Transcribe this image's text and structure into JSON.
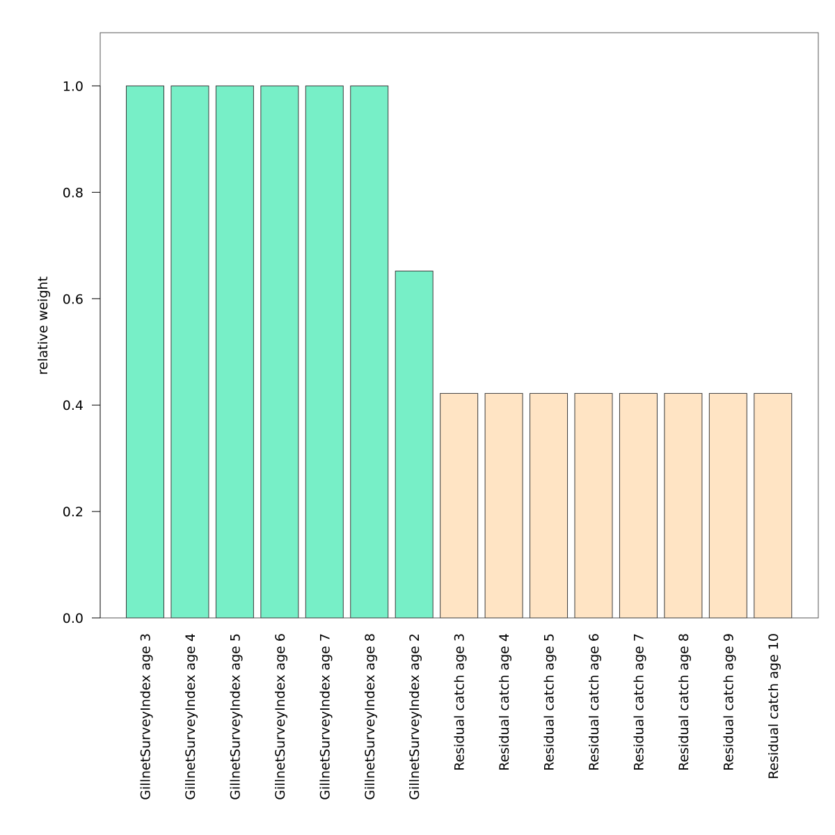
{
  "chart_data": {
    "type": "bar",
    "title": "",
    "xlabel": "",
    "ylabel": "relative weight",
    "ylim": [
      0,
      1.1
    ],
    "yticks": [
      0.0,
      0.2,
      0.4,
      0.6,
      0.8,
      1.0
    ],
    "ytick_labels": [
      "0.0",
      "0.2",
      "0.4",
      "0.6",
      "0.8",
      "1.0"
    ],
    "grid": false,
    "legend": "none",
    "colors": {
      "survey": "#77efc7",
      "catch": "#ffe4c4",
      "edge": "#3a3a3a",
      "frame": "#555555"
    },
    "categories": [
      "GillnetSurveyIndex age 3",
      "GillnetSurveyIndex age 4",
      "GillnetSurveyIndex age 5",
      "GillnetSurveyIndex age 6",
      "GillnetSurveyIndex age 7",
      "GillnetSurveyIndex age 8",
      "GillnetSurveyIndex age 2",
      "Residual catch age 3",
      "Residual catch age 4",
      "Residual catch age 5",
      "Residual catch age 6",
      "Residual catch age 7",
      "Residual catch age 8",
      "Residual catch age 9",
      "Residual catch age 10"
    ],
    "values": [
      1.0,
      1.0,
      1.0,
      1.0,
      1.0,
      1.0,
      0.652,
      0.422,
      0.422,
      0.422,
      0.422,
      0.422,
      0.422,
      0.422,
      0.422
    ],
    "bar_groups": [
      "survey",
      "survey",
      "survey",
      "survey",
      "survey",
      "survey",
      "survey",
      "catch",
      "catch",
      "catch",
      "catch",
      "catch",
      "catch",
      "catch",
      "catch"
    ]
  }
}
